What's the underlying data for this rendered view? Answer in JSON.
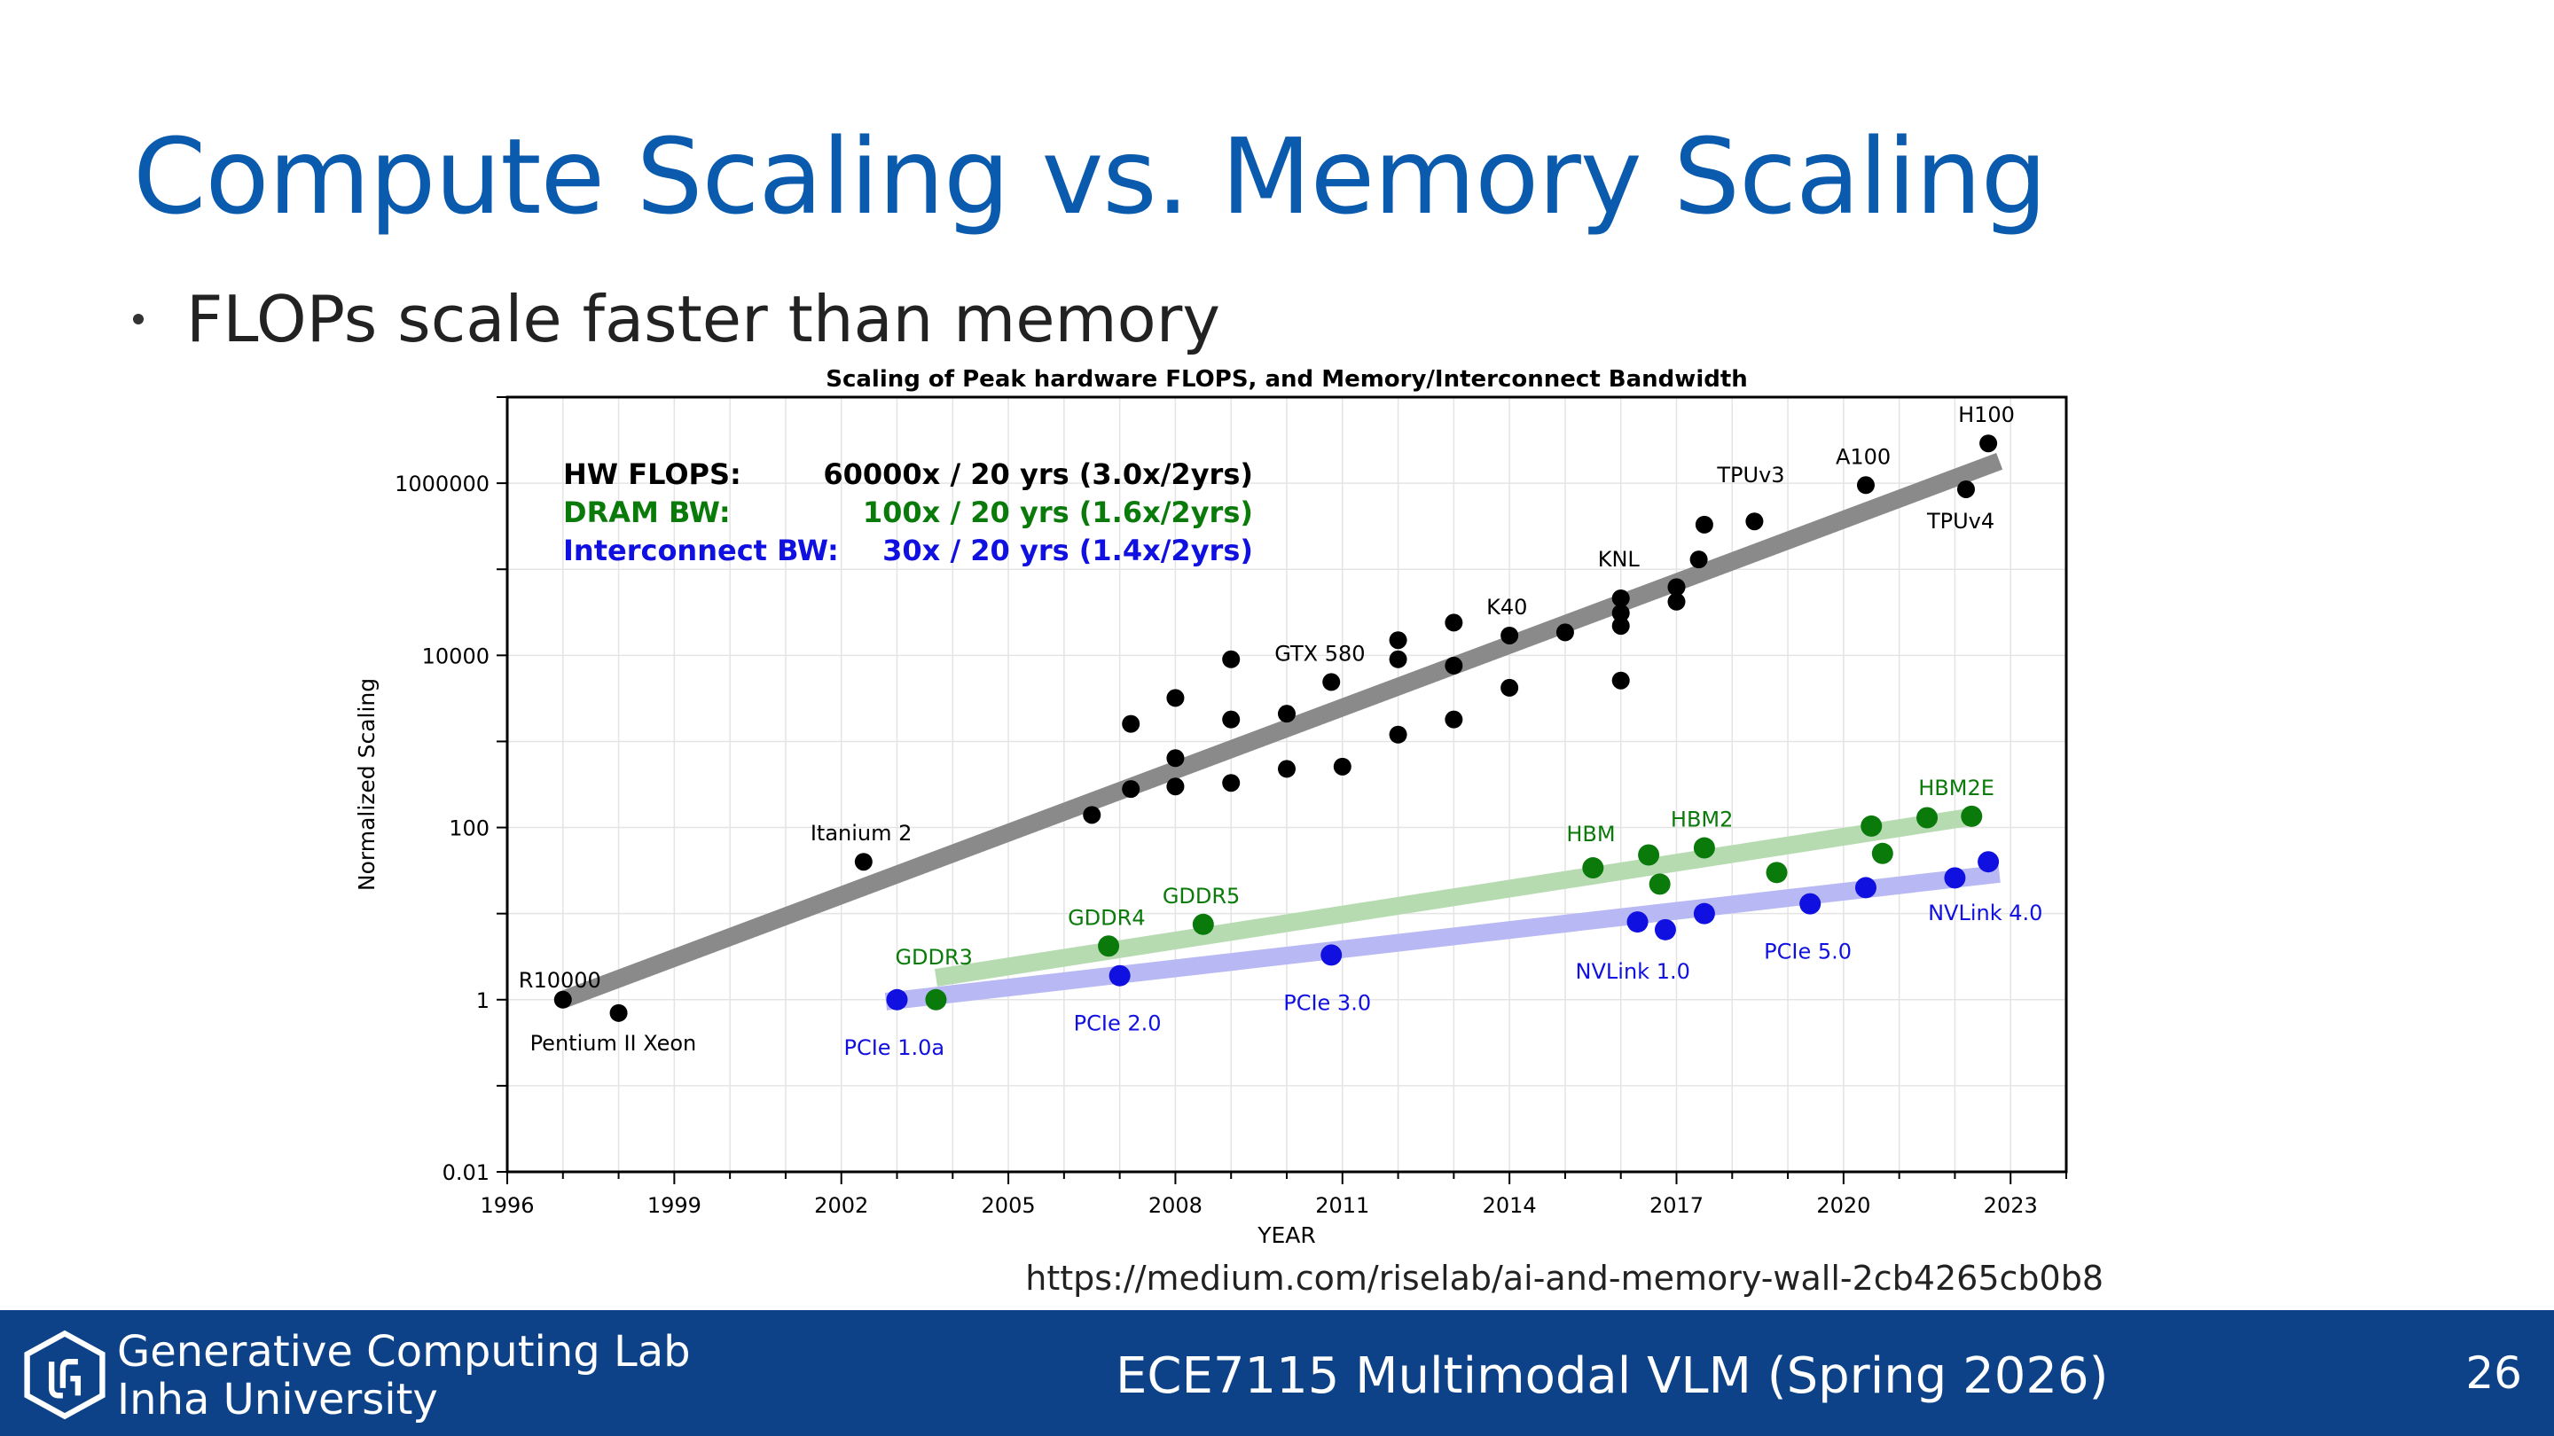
{
  "slide": {
    "title": "Compute Scaling vs. Memory Scaling",
    "bullet": "FLOPs scale faster than memory",
    "source": "https://medium.com/riselab/ai-and-memory-wall-2cb4265cb0b8"
  },
  "footer": {
    "org_line1": "Generative Computing Lab",
    "org_line2": "Inha University",
    "course": "ECE7115 Multimodal VLM (Spring 2026)",
    "page": "26"
  },
  "colors": {
    "title": "#0a5aad",
    "footer_bg": "#0d4289",
    "flops": "#000000",
    "dram": "#0a7a0a",
    "interconnect": "#1010e0"
  },
  "chart_data": {
    "type": "scatter",
    "title": "Scaling of Peak hardware FLOPS, and Memory/Interconnect Bandwidth",
    "xlabel": "YEAR",
    "ylabel": "Normalized Scaling",
    "x_scale": "linear",
    "y_scale": "log",
    "xlim": [
      1996,
      2024
    ],
    "ylim": [
      0.01,
      10000000
    ],
    "xticks": [
      "1996",
      "1999",
      "2002",
      "2005",
      "2008",
      "2011",
      "2014",
      "2017",
      "2020",
      "2023"
    ],
    "yticks": [
      "0.01",
      "1",
      "100",
      "10000",
      "1000000"
    ],
    "grid": true,
    "legend": [
      {
        "label": "HW FLOPS:",
        "text": "60000x / 20 yrs (3.0x/2yrs)",
        "color": "#000000"
      },
      {
        "label": "DRAM BW:",
        "text": "100x / 20 yrs (1.6x/2yrs)",
        "color": "#0a7a0a"
      },
      {
        "label": "Interconnect BW:",
        "text": "30x / 20 yrs (1.4x/2yrs)",
        "color": "#1010e0"
      }
    ],
    "series": [
      {
        "name": "HW FLOPS",
        "color": "#000000",
        "trend_color": "#8a8a8a",
        "trend": [
          [
            1997,
            1
          ],
          [
            2022.8,
            1800000
          ]
        ],
        "points": [
          {
            "x": 1997.0,
            "y": 1
          },
          {
            "x": 1998.0,
            "y": 0.7
          },
          {
            "x": 2002.4,
            "y": 40
          },
          {
            "x": 2006.5,
            "y": 140
          },
          {
            "x": 2007.2,
            "y": 280
          },
          {
            "x": 2007.2,
            "y": 1600
          },
          {
            "x": 2008.0,
            "y": 300
          },
          {
            "x": 2008.0,
            "y": 640
          },
          {
            "x": 2008.0,
            "y": 3200
          },
          {
            "x": 2009.0,
            "y": 330
          },
          {
            "x": 2009.0,
            "y": 1800
          },
          {
            "x": 2009.0,
            "y": 9000
          },
          {
            "x": 2010.0,
            "y": 480
          },
          {
            "x": 2010.0,
            "y": 2100
          },
          {
            "x": 2010.8,
            "y": 4900
          },
          {
            "x": 2011.0,
            "y": 510
          },
          {
            "x": 2012.0,
            "y": 1200
          },
          {
            "x": 2012.0,
            "y": 9000
          },
          {
            "x": 2012.0,
            "y": 15000
          },
          {
            "x": 2013.0,
            "y": 1800
          },
          {
            "x": 2013.0,
            "y": 7600
          },
          {
            "x": 2013.0,
            "y": 24000
          },
          {
            "x": 2014.0,
            "y": 4200
          },
          {
            "x": 2014.0,
            "y": 17000
          },
          {
            "x": 2015.0,
            "y": 18500
          },
          {
            "x": 2016.0,
            "y": 5100
          },
          {
            "x": 2016.0,
            "y": 22000
          },
          {
            "x": 2016.0,
            "y": 31000
          },
          {
            "x": 2016.0,
            "y": 46000
          },
          {
            "x": 2017.0,
            "y": 42000
          },
          {
            "x": 2017.0,
            "y": 62000
          },
          {
            "x": 2017.4,
            "y": 130000
          },
          {
            "x": 2017.5,
            "y": 330000
          },
          {
            "x": 2018.4,
            "y": 360000
          },
          {
            "x": 2020.4,
            "y": 950000
          },
          {
            "x": 2022.2,
            "y": 850000
          },
          {
            "x": 2022.6,
            "y": 2900000
          }
        ],
        "labels": [
          {
            "text": "R10000",
            "x": 1997.0,
            "y": 1
          },
          {
            "text": "Pentium II Xeon",
            "x": 1998.0,
            "y": 0.7
          },
          {
            "text": "Itanium 2",
            "x": 2002.4,
            "y": 40
          },
          {
            "text": "GTX 580",
            "x": 2010.8,
            "y": 4900
          },
          {
            "text": "K40",
            "x": 2014.0,
            "y": 17000
          },
          {
            "text": "KNL",
            "x": 2016.0,
            "y": 46000
          },
          {
            "text": "TPUv3",
            "x": 2018.4,
            "y": 360000
          },
          {
            "text": "A100",
            "x": 2020.4,
            "y": 950000
          },
          {
            "text": "TPUv4",
            "x": 2022.2,
            "y": 850000
          },
          {
            "text": "H100",
            "x": 2022.6,
            "y": 2900000
          }
        ]
      },
      {
        "name": "DRAM BW",
        "color": "#0a7a0a",
        "trend_color": "#b6dbb0",
        "trend": [
          [
            2003.7,
            1.8
          ],
          [
            2022.2,
            130
          ]
        ],
        "points": [
          {
            "x": 2003.7,
            "y": 1
          },
          {
            "x": 2006.8,
            "y": 4.2
          },
          {
            "x": 2008.5,
            "y": 7.5
          },
          {
            "x": 2015.5,
            "y": 34
          },
          {
            "x": 2016.5,
            "y": 48
          },
          {
            "x": 2016.7,
            "y": 22
          },
          {
            "x": 2017.5,
            "y": 58
          },
          {
            "x": 2018.8,
            "y": 30
          },
          {
            "x": 2020.5,
            "y": 104
          },
          {
            "x": 2020.7,
            "y": 50
          },
          {
            "x": 2021.5,
            "y": 130
          },
          {
            "x": 2022.3,
            "y": 135
          }
        ],
        "labels": [
          {
            "text": "GDDR3",
            "x": 2003.7,
            "y": 1
          },
          {
            "text": "GDDR4",
            "x": 2006.8,
            "y": 4.2
          },
          {
            "text": "GDDR5",
            "x": 2008.5,
            "y": 7.5
          },
          {
            "text": "HBM",
            "x": 2015.5,
            "y": 34
          },
          {
            "text": "HBM2",
            "x": 2017.5,
            "y": 58
          },
          {
            "text": "HBM2E",
            "x": 2022.3,
            "y": 135
          }
        ]
      },
      {
        "name": "Interconnect BW",
        "color": "#1010e0",
        "trend_color": "#b8b8f4",
        "trend": [
          [
            2002.8,
            0.95
          ],
          [
            2022.8,
            29
          ]
        ],
        "points": [
          {
            "x": 2003.0,
            "y": 1
          },
          {
            "x": 2007.0,
            "y": 1.9
          },
          {
            "x": 2010.8,
            "y": 3.3
          },
          {
            "x": 2016.3,
            "y": 8
          },
          {
            "x": 2016.8,
            "y": 6.5
          },
          {
            "x": 2017.5,
            "y": 10
          },
          {
            "x": 2019.4,
            "y": 13
          },
          {
            "x": 2020.4,
            "y": 20
          },
          {
            "x": 2022.0,
            "y": 26
          },
          {
            "x": 2022.6,
            "y": 40
          }
        ],
        "labels": [
          {
            "text": "PCIe 1.0a",
            "x": 2003.0,
            "y": 1
          },
          {
            "text": "PCIe 2.0",
            "x": 2007.0,
            "y": 1.9
          },
          {
            "text": "PCIe 3.0",
            "x": 2010.8,
            "y": 3.3
          },
          {
            "text": "NVLink 1.0",
            "x": 2016.3,
            "y": 8
          },
          {
            "text": "PCIe 5.0",
            "x": 2019.4,
            "y": 13
          },
          {
            "text": "NVLink 4.0",
            "x": 2022.6,
            "y": 40
          }
        ]
      }
    ]
  }
}
